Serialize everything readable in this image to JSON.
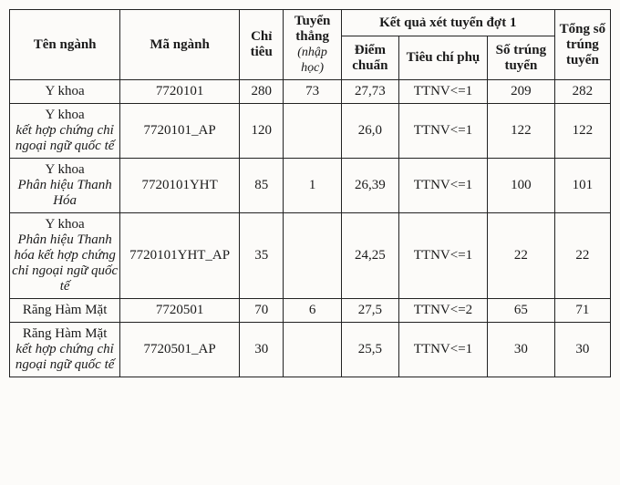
{
  "headers": {
    "ten_nganh": "Tên ngành",
    "ma_nganh": "Mã ngành",
    "chi_tieu": "Chỉ tiêu",
    "tuyen_thang": "Tuyển thẳng",
    "tuyen_thang_sub": "(nhập học)",
    "kq_group": "Kết quả xét tuyển đợt 1",
    "diem_chuan": "Điểm chuẩn",
    "tieu_chi_phu": "Tiêu chí phụ",
    "so_trung_tuyen": "Số trúng tuyển",
    "tong_so": "Tổng số trúng tuyển"
  },
  "rows": [
    {
      "name_main": "Y khoa",
      "name_sub": "",
      "code": "7720101",
      "chi_tieu": "280",
      "thang": "73",
      "diem": "27,73",
      "tieu": "TTNV<=1",
      "trung": "209",
      "tong": "282"
    },
    {
      "name_main": "Y khoa",
      "name_sub": "kết hợp chứng chỉ ngoại ngữ quốc tế",
      "code": "7720101_AP",
      "chi_tieu": "120",
      "thang": "",
      "diem": "26,0",
      "tieu": "TTNV<=1",
      "trung": "122",
      "tong": "122"
    },
    {
      "name_main": "Y khoa",
      "name_sub": "Phân hiệu Thanh Hóa",
      "code": "7720101YHT",
      "chi_tieu": "85",
      "thang": "1",
      "diem": "26,39",
      "tieu": "TTNV<=1",
      "trung": "100",
      "tong": "101"
    },
    {
      "name_main": "Y khoa",
      "name_sub": "Phân hiệu Thanh hóa kết hợp chứng chỉ ngoại ngữ quốc tế",
      "code": "7720101YHT_AP",
      "chi_tieu": "35",
      "thang": "",
      "diem": "24,25",
      "tieu": "TTNV<=1",
      "trung": "22",
      "tong": "22"
    },
    {
      "name_main": "Răng Hàm Mặt",
      "name_sub": "",
      "code": "7720501",
      "chi_tieu": "70",
      "thang": "6",
      "diem": "27,5",
      "tieu": "TTNV<=2",
      "trung": "65",
      "tong": "71"
    },
    {
      "name_main": "Răng Hàm Mặt",
      "name_sub": "kết hợp chứng chỉ ngoại ngữ quốc tế",
      "code": "7720501_AP",
      "chi_tieu": "30",
      "thang": "",
      "diem": "25,5",
      "tieu": "TTNV<=1",
      "trung": "30",
      "tong": "30"
    }
  ]
}
